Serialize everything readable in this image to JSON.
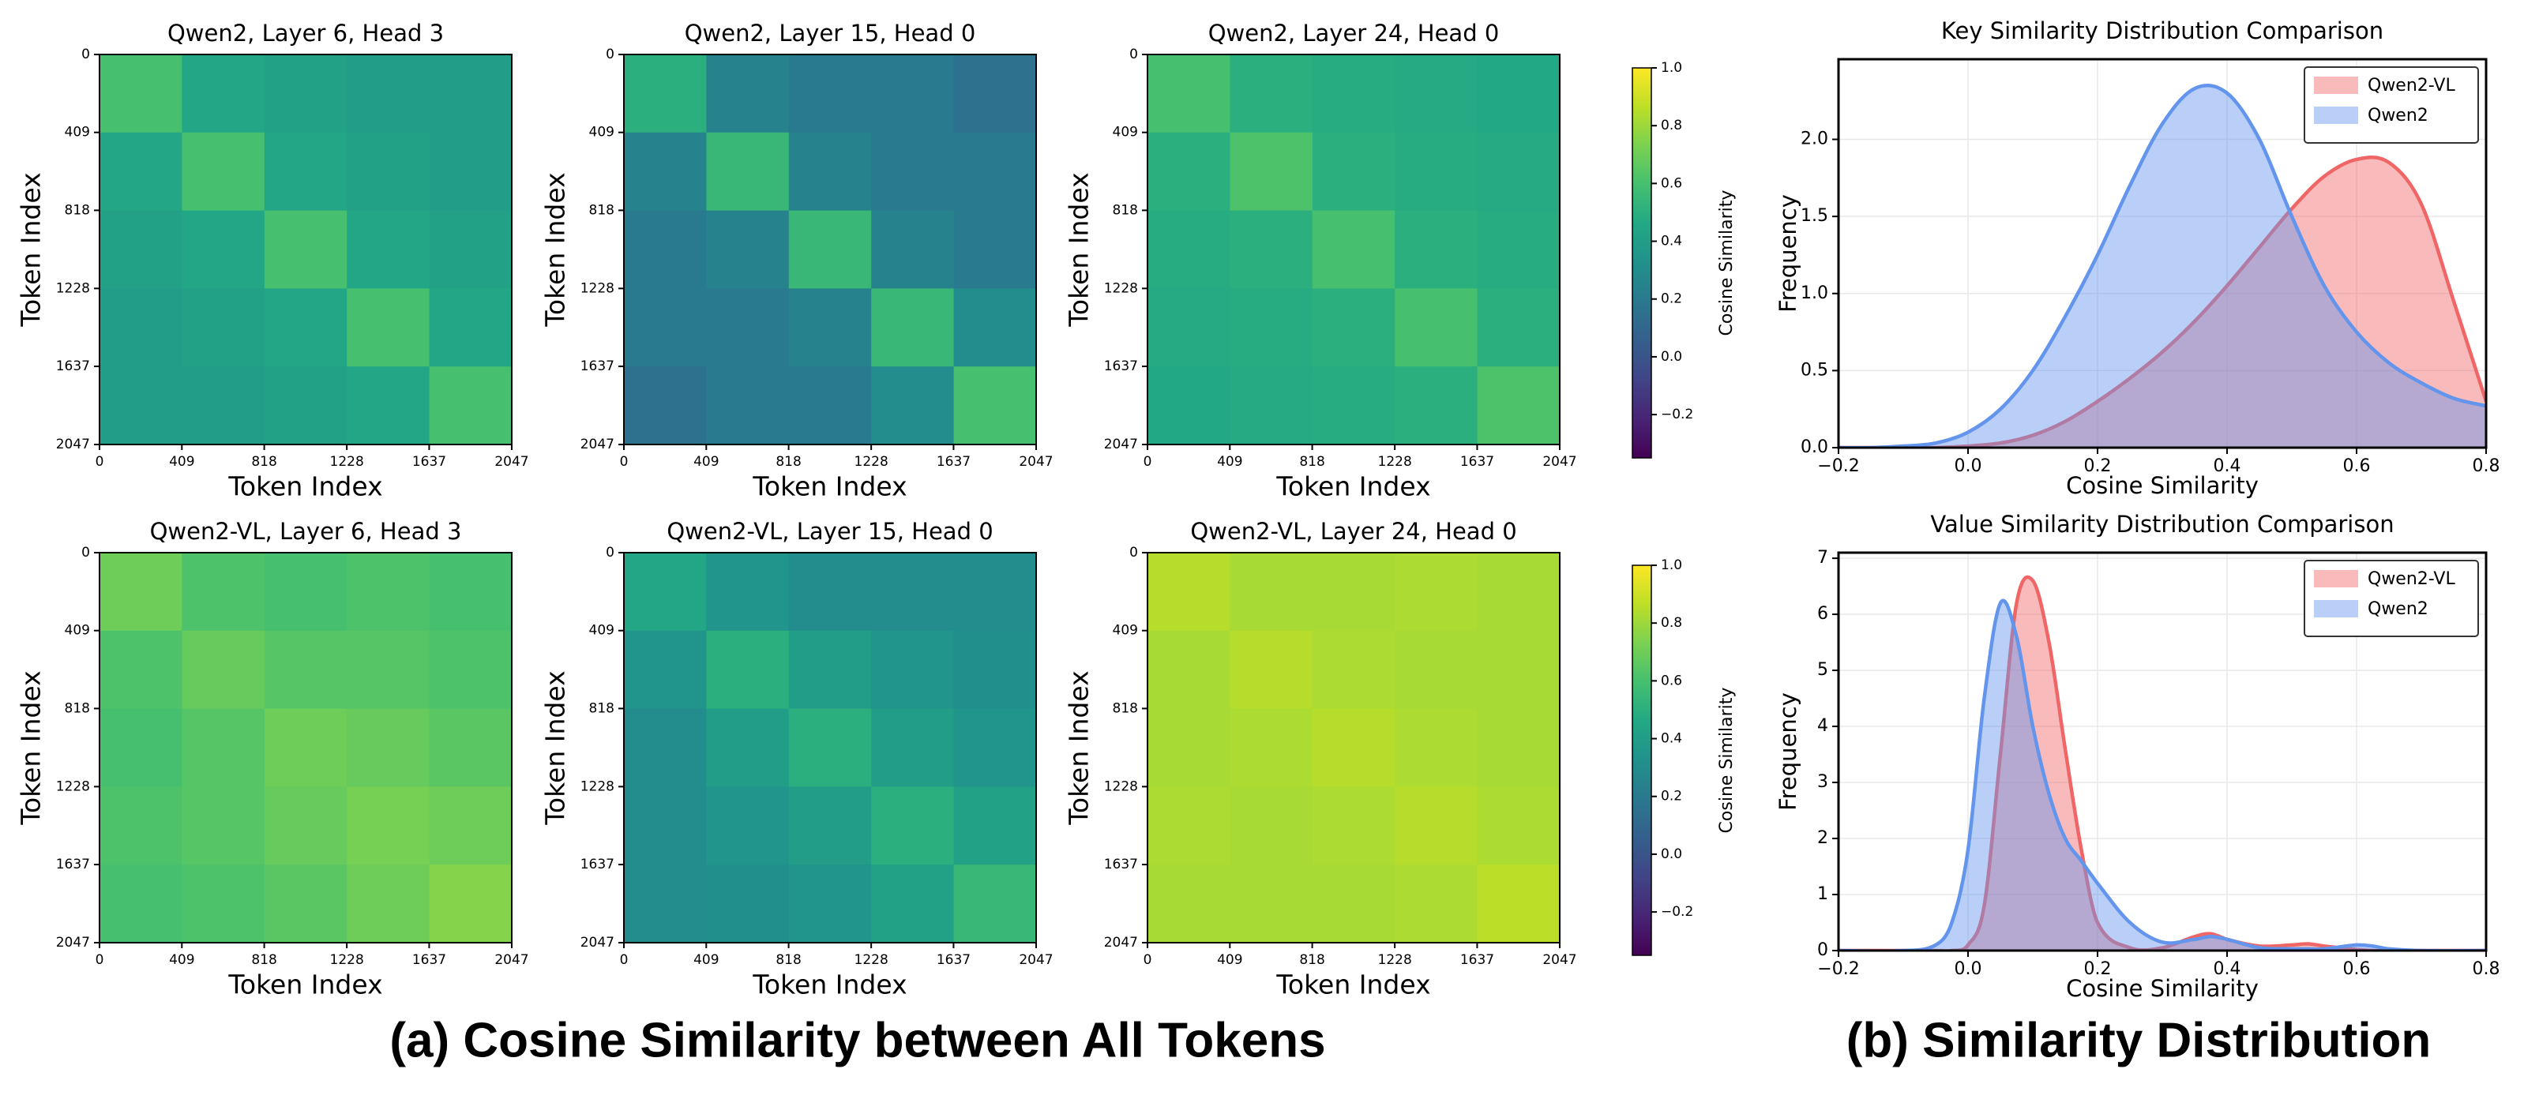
{
  "chart_data": [
    {
      "type": "heatmap",
      "title": "Qwen2, Layer 6, Head 3",
      "xlabel": "Token Index",
      "ylabel": "Token Index",
      "xlim": [
        0,
        2047
      ],
      "ylim": [
        2047,
        0
      ],
      "xticks": [
        0,
        409,
        818,
        1228,
        1637,
        2047
      ],
      "yticks": [
        0,
        409,
        818,
        1228,
        1637,
        2047
      ],
      "values": [
        [
          0.6,
          0.45,
          0.42,
          0.4,
          0.4
        ],
        [
          0.45,
          0.6,
          0.45,
          0.42,
          0.4
        ],
        [
          0.42,
          0.45,
          0.6,
          0.45,
          0.42
        ],
        [
          0.4,
          0.42,
          0.45,
          0.6,
          0.45
        ],
        [
          0.4,
          0.4,
          0.42,
          0.45,
          0.6
        ]
      ]
    },
    {
      "type": "heatmap",
      "title": "Qwen2, Layer 15, Head 0",
      "xlabel": "Token Index",
      "ylabel": "Token Index",
      "xlim": [
        0,
        2047
      ],
      "ylim": [
        2047,
        0
      ],
      "xticks": [
        0,
        409,
        818,
        1228,
        1637,
        2047
      ],
      "yticks": [
        0,
        409,
        818,
        1228,
        1637,
        2047
      ],
      "values": [
        [
          0.5,
          0.25,
          0.2,
          0.2,
          0.15
        ],
        [
          0.25,
          0.55,
          0.25,
          0.2,
          0.2
        ],
        [
          0.2,
          0.25,
          0.55,
          0.25,
          0.2
        ],
        [
          0.2,
          0.2,
          0.25,
          0.55,
          0.3
        ],
        [
          0.15,
          0.2,
          0.2,
          0.3,
          0.6
        ]
      ]
    },
    {
      "type": "heatmap",
      "title": "Qwen2, Layer 24, Head 0",
      "xlabel": "Token Index",
      "ylabel": "Token Index",
      "xlim": [
        0,
        2047
      ],
      "ylim": [
        2047,
        0
      ],
      "xticks": [
        0,
        409,
        818,
        1228,
        1637,
        2047
      ],
      "yticks": [
        0,
        409,
        818,
        1228,
        1637,
        2047
      ],
      "values": [
        [
          0.6,
          0.5,
          0.48,
          0.47,
          0.46
        ],
        [
          0.5,
          0.62,
          0.5,
          0.48,
          0.47
        ],
        [
          0.48,
          0.5,
          0.6,
          0.5,
          0.48
        ],
        [
          0.47,
          0.48,
          0.5,
          0.6,
          0.5
        ],
        [
          0.46,
          0.47,
          0.48,
          0.5,
          0.62
        ]
      ]
    },
    {
      "type": "colorbar",
      "label": "Cosine Similarity",
      "colormap": "viridis",
      "lim": [
        -0.35,
        1.0
      ],
      "ticks": [
        {
          "value": -0.2,
          "label": "−0.2"
        },
        {
          "value": 0,
          "label": "0.0"
        },
        0.2,
        0.4,
        0.6,
        0.8,
        {
          "value": 1,
          "label": "1.0"
        }
      ]
    },
    {
      "type": "heatmap",
      "title": "Qwen2-VL, Layer 6, Head 3",
      "xlabel": "Token Index",
      "ylabel": "Token Index",
      "xlim": [
        0,
        2047
      ],
      "ylim": [
        2047,
        0
      ],
      "xticks": [
        0,
        409,
        818,
        1228,
        1637,
        2047
      ],
      "yticks": [
        0,
        409,
        818,
        1228,
        1637,
        2047
      ],
      "values": [
        [
          0.7,
          0.62,
          0.6,
          0.62,
          0.6
        ],
        [
          0.62,
          0.68,
          0.64,
          0.64,
          0.62
        ],
        [
          0.6,
          0.64,
          0.7,
          0.68,
          0.65
        ],
        [
          0.62,
          0.64,
          0.68,
          0.72,
          0.7
        ],
        [
          0.6,
          0.62,
          0.65,
          0.7,
          0.75
        ]
      ]
    },
    {
      "type": "heatmap",
      "title": "Qwen2-VL, Layer 15, Head 0",
      "xlabel": "Token Index",
      "ylabel": "Token Index",
      "xlim": [
        0,
        2047
      ],
      "ylim": [
        2047,
        0
      ],
      "xticks": [
        0,
        409,
        818,
        1228,
        1637,
        2047
      ],
      "yticks": [
        0,
        409,
        818,
        1228,
        1637,
        2047
      ],
      "values": [
        [
          0.45,
          0.35,
          0.3,
          0.3,
          0.3
        ],
        [
          0.35,
          0.5,
          0.4,
          0.35,
          0.32
        ],
        [
          0.3,
          0.4,
          0.5,
          0.4,
          0.35
        ],
        [
          0.3,
          0.35,
          0.4,
          0.5,
          0.42
        ],
        [
          0.3,
          0.32,
          0.35,
          0.42,
          0.55
        ]
      ]
    },
    {
      "type": "heatmap",
      "title": "Qwen2-VL, Layer 24, Head 0",
      "xlabel": "Token Index",
      "ylabel": "Token Index",
      "xlim": [
        0,
        2047
      ],
      "ylim": [
        2047,
        0
      ],
      "xticks": [
        0,
        409,
        818,
        1228,
        1637,
        2047
      ],
      "yticks": [
        0,
        409,
        818,
        1228,
        1637,
        2047
      ],
      "values": [
        [
          0.85,
          0.82,
          0.82,
          0.83,
          0.82
        ],
        [
          0.82,
          0.85,
          0.83,
          0.82,
          0.82
        ],
        [
          0.82,
          0.83,
          0.85,
          0.83,
          0.82
        ],
        [
          0.83,
          0.82,
          0.83,
          0.85,
          0.83
        ],
        [
          0.82,
          0.82,
          0.82,
          0.83,
          0.86
        ]
      ]
    },
    {
      "type": "colorbar",
      "label": "Cosine Similarity",
      "colormap": "viridis",
      "lim": [
        -0.35,
        1.0
      ],
      "ticks": [
        {
          "value": -0.2,
          "label": "−0.2"
        },
        {
          "value": 0,
          "label": "0.0"
        },
        0.2,
        0.4,
        0.6,
        0.8,
        {
          "value": 1,
          "label": "1.0"
        }
      ]
    },
    {
      "type": "area",
      "title": "Key Similarity Distribution Comparison",
      "xlabel": "Cosine Similarity",
      "ylabel": "Frequency",
      "xlim": [
        -0.2,
        0.8
      ],
      "ylim": [
        0,
        2.52
      ],
      "grid": true,
      "legend": "upper right",
      "xticks": [
        {
          "value": -0.2,
          "label": "−0.2"
        },
        {
          "value": 0,
          "label": "0.0"
        },
        0.2,
        0.4,
        0.6,
        0.8
      ],
      "yticks": [
        {
          "value": 0,
          "label": "0.0"
        },
        0.5,
        {
          "value": 1,
          "label": "1.0"
        },
        1.5,
        {
          "value": 2,
          "label": "2.0"
        }
      ],
      "x": [
        -0.2,
        -0.15,
        -0.1,
        -0.05,
        0,
        0.05,
        0.1,
        0.15,
        0.2,
        0.25,
        0.3,
        0.35,
        0.4,
        0.45,
        0.5,
        0.55,
        0.6,
        0.65,
        0.7,
        0.75,
        0.8
      ],
      "series": [
        {
          "name": "Qwen2-VL",
          "color": "#f06666",
          "values": [
            0,
            0,
            0,
            0,
            0.01,
            0.03,
            0.08,
            0.17,
            0.3,
            0.45,
            0.62,
            0.82,
            1.05,
            1.3,
            1.55,
            1.76,
            1.87,
            1.85,
            1.58,
            0.95,
            0.3
          ]
        },
        {
          "name": "Qwen2",
          "color": "#6495ed",
          "values": [
            0,
            0,
            0.01,
            0.03,
            0.1,
            0.25,
            0.5,
            0.85,
            1.25,
            1.7,
            2.1,
            2.33,
            2.3,
            2.0,
            1.5,
            1.05,
            0.75,
            0.55,
            0.42,
            0.32,
            0.27
          ]
        }
      ]
    },
    {
      "type": "area",
      "title": "Value Similarity Distribution Comparison",
      "xlabel": "Cosine Similarity",
      "ylabel": "Frequency",
      "xlim": [
        -0.2,
        0.8
      ],
      "ylim": [
        0,
        7.1
      ],
      "grid": true,
      "legend": "upper right",
      "xticks": [
        {
          "value": -0.2,
          "label": "−0.2"
        },
        {
          "value": 0,
          "label": "0.0"
        },
        0.2,
        0.4,
        0.6,
        0.8
      ],
      "yticks": [
        0,
        1,
        2,
        3,
        4,
        5,
        6,
        7
      ],
      "x": [
        -0.2,
        -0.1,
        -0.05,
        -0.025,
        0,
        0.025,
        0.05,
        0.075,
        0.1,
        0.125,
        0.15,
        0.175,
        0.2,
        0.25,
        0.3,
        0.35,
        0.375,
        0.4,
        0.45,
        0.5,
        0.525,
        0.55,
        0.6,
        0.625,
        0.65,
        0.7,
        0.8
      ],
      "series": [
        {
          "name": "Qwen2-VL",
          "color": "#f06666",
          "values": [
            0,
            0,
            0,
            0,
            0.1,
            0.8,
            3.5,
            6.2,
            6.6,
            5.5,
            3.6,
            1.8,
            0.5,
            0.05,
            0.05,
            0.25,
            0.3,
            0.2,
            0.08,
            0.1,
            0.12,
            0.08,
            0.02,
            0,
            0,
            0,
            0
          ]
        },
        {
          "name": "Qwen2",
          "color": "#6495ed",
          "values": [
            0,
            0,
            0.1,
            0.5,
            1.8,
            4.5,
            6.2,
            5.6,
            4.0,
            2.8,
            2.0,
            1.6,
            1.2,
            0.5,
            0.15,
            0.2,
            0.25,
            0.2,
            0.05,
            0.03,
            0.03,
            0.03,
            0.1,
            0.08,
            0.03,
            0,
            0
          ]
        }
      ]
    }
  ],
  "captions": [
    "(a) Cosine Similarity between All Tokens",
    "(b) Similarity Distribution"
  ]
}
